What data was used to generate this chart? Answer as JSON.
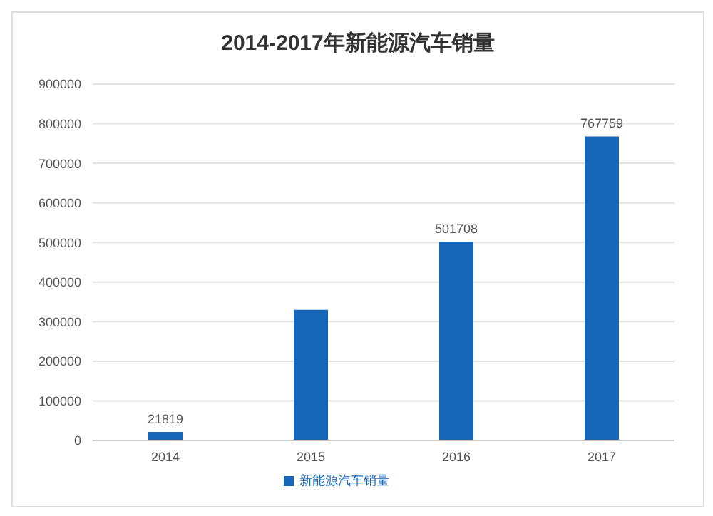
{
  "chart_data": {
    "type": "bar",
    "title": "2014-2017年新能源汽车销量",
    "categories": [
      "2014",
      "2015",
      "2016",
      "2017"
    ],
    "series": [
      {
        "name": "新能源汽车销量",
        "color": "#1565b8",
        "values": [
          21819,
          330000,
          501708,
          767759
        ],
        "value_labels": [
          "21819",
          null,
          "501708",
          "767759"
        ]
      }
    ],
    "ylim": [
      0,
      900000
    ],
    "yticks": [
      0,
      100000,
      200000,
      300000,
      400000,
      500000,
      600000,
      700000,
      800000,
      900000
    ],
    "grid": "y",
    "legend": "bottom"
  }
}
